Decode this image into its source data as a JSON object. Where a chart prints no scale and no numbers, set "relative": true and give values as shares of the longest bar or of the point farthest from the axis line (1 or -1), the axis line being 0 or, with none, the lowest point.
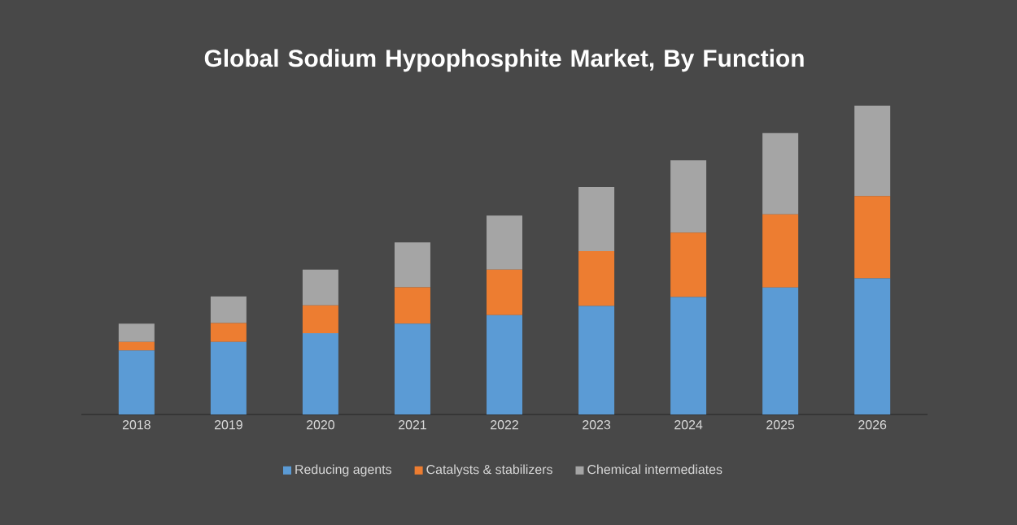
{
  "chart_data": {
    "type": "bar",
    "title": "Global Sodium Hypophosphite Market, By Function",
    "stacked": true,
    "relative": true,
    "legend": "bottom",
    "categories": [
      "2018",
      "2019",
      "2020",
      "2021",
      "2022",
      "2023",
      "2024",
      "2025",
      "2026"
    ],
    "series": [
      {
        "name": "Reducing agents",
        "color": "#5b9bd5",
        "values": [
          0.207,
          0.235,
          0.263,
          0.294,
          0.322,
          0.351,
          0.38,
          0.411,
          0.441
        ]
      },
      {
        "name": "Catalysts & stabilizers",
        "color": "#ed7d31",
        "values": [
          0.028,
          0.061,
          0.09,
          0.118,
          0.147,
          0.178,
          0.209,
          0.237,
          0.266
        ]
      },
      {
        "name": "Chemical intermediates",
        "color": "#a5a5a5",
        "values": [
          0.059,
          0.086,
          0.116,
          0.145,
          0.175,
          0.208,
          0.234,
          0.263,
          0.293
        ]
      }
    ]
  }
}
